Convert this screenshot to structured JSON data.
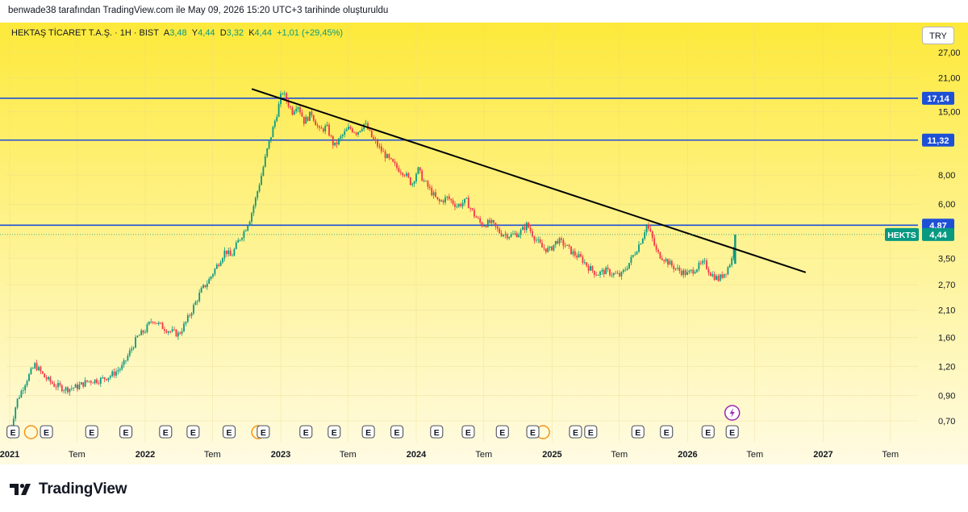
{
  "header": {
    "attribution": "benwade38 tarafından TradingView.com ile May 09, 2026 15:20 UTC+3 tarihinde oluşturuldu"
  },
  "legend": {
    "symbol": "HEKTAŞ TİCARET T.A.Ş.",
    "interval": "1H",
    "exchange": "BIST",
    "open_label": "A",
    "open": "3,48",
    "high_label": "Y",
    "high": "4,44",
    "low_label": "D",
    "low": "3,32",
    "close_label": "K",
    "close": "4,44",
    "change": "+1,01 (+29,45%)"
  },
  "currency_button": "TRY",
  "footer": {
    "brand": "TradingView"
  },
  "colors": {
    "up": "#089981",
    "down": "#f23645",
    "hline": "#1e50d6",
    "trendline": "#000000",
    "bg_top": "#fde93a",
    "bg_bottom": "#fffbe3"
  },
  "chart_data": {
    "type": "candlestick",
    "symbol": "HEKTS",
    "scale": "log",
    "y_ticks": [
      "27,00",
      "21,00",
      "15,00",
      "8,00",
      "6,00",
      "3,50",
      "2,70",
      "2,10",
      "1,60",
      "1,20",
      "0,90",
      "0,70"
    ],
    "x_ticks": [
      {
        "label": "2021",
        "date": "2021-01"
      },
      {
        "label": "Tem",
        "date": "2021-07"
      },
      {
        "label": "2022",
        "date": "2022-01"
      },
      {
        "label": "Tem",
        "date": "2022-07"
      },
      {
        "label": "2023",
        "date": "2023-01"
      },
      {
        "label": "Tem",
        "date": "2023-07"
      },
      {
        "label": "2024",
        "date": "2024-01"
      },
      {
        "label": "Tem",
        "date": "2024-07"
      },
      {
        "label": "2025",
        "date": "2025-01"
      },
      {
        "label": "Tem",
        "date": "2025-07"
      },
      {
        "label": "2026",
        "date": "2026-01"
      },
      {
        "label": "Tem",
        "date": "2026-07"
      },
      {
        "label": "2027",
        "date": "2027-01"
      },
      {
        "label": "Tem",
        "date": "2027-07"
      }
    ],
    "horizontal_lines": [
      {
        "value": 17.14,
        "label": "17,14"
      },
      {
        "value": 11.32,
        "label": "11,32"
      },
      {
        "value": 4.87,
        "label": "4,87"
      }
    ],
    "last_price": {
      "value": 4.44,
      "label": "4,44",
      "symbol_label": "HEKTS"
    },
    "trendline": {
      "start": {
        "date": "2022-10-15",
        "value": 18.8
      },
      "end": {
        "date": "2026-11-15",
        "value": 3.05
      }
    },
    "price_path": [
      [
        "2021-01-01",
        0.62
      ],
      [
        "2021-01-20",
        0.85
      ],
      [
        "2021-02-15",
        1.05
      ],
      [
        "2021-03-10",
        1.22
      ],
      [
        "2021-04-05",
        1.08
      ],
      [
        "2021-05-01",
        1.0
      ],
      [
        "2021-06-01",
        0.96
      ],
      [
        "2021-07-01",
        0.98
      ],
      [
        "2021-08-01",
        1.04
      ],
      [
        "2021-09-01",
        1.05
      ],
      [
        "2021-10-01",
        1.1
      ],
      [
        "2021-11-01",
        1.2
      ],
      [
        "2021-11-20",
        1.38
      ],
      [
        "2021-12-10",
        1.6
      ],
      [
        "2022-01-01",
        1.72
      ],
      [
        "2022-01-20",
        1.92
      ],
      [
        "2022-02-15",
        1.78
      ],
      [
        "2022-03-10",
        1.7
      ],
      [
        "2022-04-01",
        1.65
      ],
      [
        "2022-04-20",
        1.85
      ],
      [
        "2022-05-10",
        2.15
      ],
      [
        "2022-06-01",
        2.55
      ],
      [
        "2022-06-20",
        2.8
      ],
      [
        "2022-07-15",
        3.3
      ],
      [
        "2022-08-05",
        3.8
      ],
      [
        "2022-08-20",
        3.55
      ],
      [
        "2022-09-10",
        4.2
      ],
      [
        "2022-09-25",
        4.6
      ],
      [
        "2022-10-10",
        5.2
      ],
      [
        "2022-10-25",
        6.3
      ],
      [
        "2022-11-10",
        8.0
      ],
      [
        "2022-11-25",
        10.2
      ],
      [
        "2022-12-10",
        12.5
      ],
      [
        "2022-12-25",
        15.5
      ],
      [
        "2023-01-05",
        18.5
      ],
      [
        "2023-01-15",
        17.0
      ],
      [
        "2023-02-01",
        15.0
      ],
      [
        "2023-02-15",
        16.3
      ],
      [
        "2023-03-05",
        13.6
      ],
      [
        "2023-03-25",
        14.8
      ],
      [
        "2023-04-15",
        12.4
      ],
      [
        "2023-05-05",
        12.9
      ],
      [
        "2023-05-25",
        10.6
      ],
      [
        "2023-06-15",
        11.8
      ],
      [
        "2023-07-05",
        12.8
      ],
      [
        "2023-07-25",
        12.2
      ],
      [
        "2023-08-15",
        13.4
      ],
      [
        "2023-09-05",
        11.5
      ],
      [
        "2023-09-25",
        10.4
      ],
      [
        "2023-10-20",
        9.3
      ],
      [
        "2023-11-10",
        8.6
      ],
      [
        "2023-11-30",
        8.2
      ],
      [
        "2023-12-20",
        7.3
      ],
      [
        "2024-01-05",
        8.5
      ],
      [
        "2024-01-20",
        7.6
      ],
      [
        "2024-02-10",
        6.8
      ],
      [
        "2024-03-01",
        6.1
      ],
      [
        "2024-03-25",
        6.4
      ],
      [
        "2024-04-20",
        5.9
      ],
      [
        "2024-05-15",
        6.2
      ],
      [
        "2024-06-05",
        5.4
      ],
      [
        "2024-06-25",
        4.9
      ],
      [
        "2024-07-20",
        5.0
      ],
      [
        "2024-08-15",
        4.5
      ],
      [
        "2024-09-10",
        4.4
      ],
      [
        "2024-10-05",
        4.5
      ],
      [
        "2024-10-25",
        4.9
      ],
      [
        "2024-11-15",
        4.3
      ],
      [
        "2024-12-05",
        3.9
      ],
      [
        "2024-12-25",
        3.8
      ],
      [
        "2025-01-15",
        4.2
      ],
      [
        "2025-02-05",
        4.0
      ],
      [
        "2025-02-25",
        3.7
      ],
      [
        "2025-03-20",
        3.5
      ],
      [
        "2025-04-10",
        3.2
      ],
      [
        "2025-05-01",
        3.0
      ],
      [
        "2025-05-25",
        3.1
      ],
      [
        "2025-06-15",
        3.0
      ],
      [
        "2025-07-05",
        2.95
      ],
      [
        "2025-07-25",
        3.3
      ],
      [
        "2025-08-15",
        3.8
      ],
      [
        "2025-09-01",
        4.3
      ],
      [
        "2025-09-12",
        4.9
      ],
      [
        "2025-09-25",
        4.4
      ],
      [
        "2025-10-10",
        3.7
      ],
      [
        "2025-10-30",
        3.5
      ],
      [
        "2025-11-20",
        3.25
      ],
      [
        "2025-12-10",
        3.1
      ],
      [
        "2026-01-01",
        3.0
      ],
      [
        "2026-01-25",
        3.2
      ],
      [
        "2026-02-15",
        3.35
      ],
      [
        "2026-03-05",
        3.0
      ],
      [
        "2026-03-25",
        2.85
      ],
      [
        "2026-04-15",
        3.1
      ],
      [
        "2026-04-30",
        3.48
      ],
      [
        "2026-05-09",
        4.44
      ]
    ],
    "events": [
      {
        "date": "2021-01-10",
        "label": "E"
      },
      {
        "date": "2021-04-10",
        "label": "E"
      },
      {
        "date": "2021-08-10",
        "label": "E"
      },
      {
        "date": "2021-11-10",
        "label": "E"
      },
      {
        "date": "2022-02-25",
        "label": "E"
      },
      {
        "date": "2022-05-10",
        "label": "E"
      },
      {
        "date": "2022-08-15",
        "label": "E"
      },
      {
        "date": "2022-11-15",
        "label": "E"
      },
      {
        "date": "2023-03-10",
        "label": "E"
      },
      {
        "date": "2023-05-25",
        "label": "E"
      },
      {
        "date": "2023-08-25",
        "label": "E"
      },
      {
        "date": "2023-11-10",
        "label": "E"
      },
      {
        "date": "2024-02-25",
        "label": "E"
      },
      {
        "date": "2024-05-20",
        "label": "E"
      },
      {
        "date": "2024-08-20",
        "label": "E"
      },
      {
        "date": "2024-11-10",
        "label": "E"
      },
      {
        "date": "2025-03-05",
        "label": "E"
      },
      {
        "date": "2025-04-15",
        "label": "E"
      },
      {
        "date": "2025-08-20",
        "label": "E"
      },
      {
        "date": "2025-11-05",
        "label": "E"
      },
      {
        "date": "2026-02-25",
        "label": "E"
      },
      {
        "date": "2026-05-01",
        "label": "E"
      }
    ],
    "dividends": [
      {
        "date": "2021-02-10"
      },
      {
        "date": "2022-10-15"
      },
      {
        "date": "2024-11-20"
      }
    ]
  }
}
